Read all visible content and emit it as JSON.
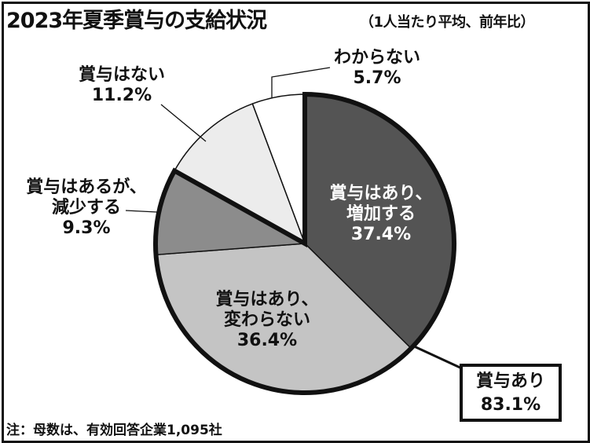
{
  "chart_data": {
    "type": "pie",
    "title": "2023年夏季賞与の支給状況",
    "subtitle": "（1人当たり平均、前年比）",
    "slices": [
      {
        "label_lines": [
          "賞与はあり、",
          "増加する"
        ],
        "value": 37.4,
        "value_text": "37.4%",
        "color": "#545454",
        "text_color": "#ffffff",
        "outlined": true
      },
      {
        "label_lines": [
          "賞与はあり、",
          "変わらない"
        ],
        "value": 36.4,
        "value_text": "36.4%",
        "color": "#c4c4c4",
        "text_color": "#111111",
        "outlined": true
      },
      {
        "label_lines": [
          "賞与はあるが、",
          "減少する"
        ],
        "value": 9.3,
        "value_text": "9.3%",
        "color": "#8c8c8c",
        "text_color": "#111111",
        "outlined": true
      },
      {
        "label_lines": [
          "賞与はない"
        ],
        "value": 11.2,
        "value_text": "11.2%",
        "color": "#ececec",
        "text_color": "#111111",
        "outlined": false
      },
      {
        "label_lines": [
          "わからない"
        ],
        "value": 5.7,
        "value_text": "5.7%",
        "color": "#ffffff",
        "text_color": "#111111",
        "outlined": false
      }
    ],
    "total_label": "賞与あり",
    "total_value": "83.1%"
  },
  "footnote": "注：母数は、有効回答企業1,095社"
}
